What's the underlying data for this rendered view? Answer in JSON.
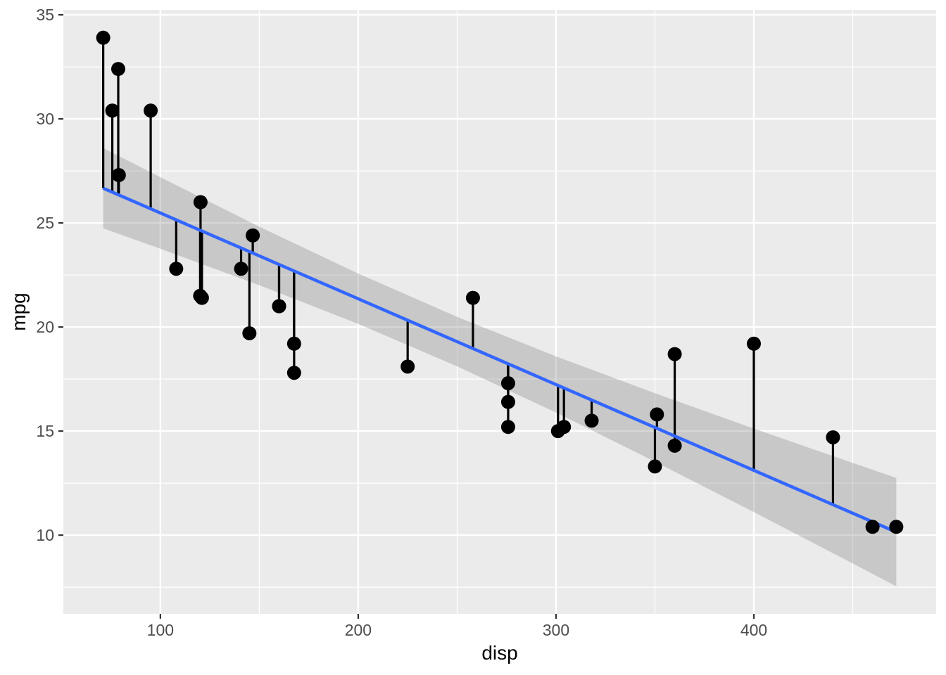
{
  "chart_data": {
    "type": "scatter",
    "title": "",
    "xlabel": "disp",
    "ylabel": "mpg",
    "legend": "none",
    "grid": "on",
    "xlim": [
      50.95,
      492.15
    ],
    "ylim": [
      6.22,
      35.24
    ],
    "x_ticks": [
      100,
      200,
      300,
      400
    ],
    "x_tick_labels": [
      "100",
      "200",
      "300",
      "400"
    ],
    "y_ticks": [
      10,
      15,
      20,
      25,
      30,
      35
    ],
    "y_tick_labels": [
      "10",
      "15",
      "20",
      "25",
      "30",
      "35"
    ],
    "x_minor_ticks": [
      150,
      250,
      350,
      450
    ],
    "y_minor_ticks": [
      7.5,
      12.5,
      17.5,
      22.5,
      27.5,
      32.5
    ],
    "points": [
      {
        "disp": 160.0,
        "mpg": 21.0
      },
      {
        "disp": 160.0,
        "mpg": 21.0
      },
      {
        "disp": 108.0,
        "mpg": 22.8
      },
      {
        "disp": 258.0,
        "mpg": 21.4
      },
      {
        "disp": 360.0,
        "mpg": 18.7
      },
      {
        "disp": 225.0,
        "mpg": 18.1
      },
      {
        "disp": 360.0,
        "mpg": 14.3
      },
      {
        "disp": 146.7,
        "mpg": 24.4
      },
      {
        "disp": 140.8,
        "mpg": 22.8
      },
      {
        "disp": 167.6,
        "mpg": 19.2
      },
      {
        "disp": 167.6,
        "mpg": 17.8
      },
      {
        "disp": 275.8,
        "mpg": 16.4
      },
      {
        "disp": 275.8,
        "mpg": 17.3
      },
      {
        "disp": 275.8,
        "mpg": 15.2
      },
      {
        "disp": 472.0,
        "mpg": 10.4
      },
      {
        "disp": 460.0,
        "mpg": 10.4
      },
      {
        "disp": 440.0,
        "mpg": 14.7
      },
      {
        "disp": 78.7,
        "mpg": 32.4
      },
      {
        "disp": 75.7,
        "mpg": 30.4
      },
      {
        "disp": 71.1,
        "mpg": 33.9
      },
      {
        "disp": 120.1,
        "mpg": 21.5
      },
      {
        "disp": 318.0,
        "mpg": 15.5
      },
      {
        "disp": 304.0,
        "mpg": 15.2
      },
      {
        "disp": 350.0,
        "mpg": 13.3
      },
      {
        "disp": 400.0,
        "mpg": 19.2
      },
      {
        "disp": 79.0,
        "mpg": 27.3
      },
      {
        "disp": 120.3,
        "mpg": 26.0
      },
      {
        "disp": 95.1,
        "mpg": 30.4
      },
      {
        "disp": 351.0,
        "mpg": 15.8
      },
      {
        "disp": 145.0,
        "mpg": 19.7
      },
      {
        "disp": 301.0,
        "mpg": 15.0
      },
      {
        "disp": 121.0,
        "mpg": 21.4
      }
    ],
    "fit_line": {
      "model": "linear",
      "intercept": 29.5999,
      "slope": -0.041215,
      "x_start": 71.1,
      "x_end": 472.0
    },
    "residual_segments": true,
    "ribbon": {
      "x": [
        71.1,
        100.0,
        150.0,
        200.0,
        250.0,
        300.0,
        350.0,
        400.0,
        450.0,
        472.0
      ],
      "upper": [
        28.6,
        27.2,
        24.82,
        22.57,
        20.49,
        18.59,
        16.82,
        15.12,
        13.47,
        12.75
      ],
      "lower": [
        24.74,
        23.76,
        22.01,
        20.15,
        18.11,
        15.89,
        13.53,
        11.11,
        8.64,
        7.54
      ]
    },
    "colors": {
      "background": "#FFFFFF",
      "panel": "#EBEBEB",
      "grid": "#FFFFFF",
      "ribbon": "rgba(130,130,130,0.33)",
      "line": "#3366FF",
      "point": "#000000",
      "segment": "#000000",
      "tick_mark": "#333333",
      "tick_label": "#4D4D4D",
      "axis_title": "#000000"
    },
    "style": {
      "point_radius": 10,
      "line_width": 4.5,
      "segment_width": 3.2,
      "grid_major_width": 2.4,
      "grid_minor_width": 1.2,
      "tick_length": 7
    }
  }
}
